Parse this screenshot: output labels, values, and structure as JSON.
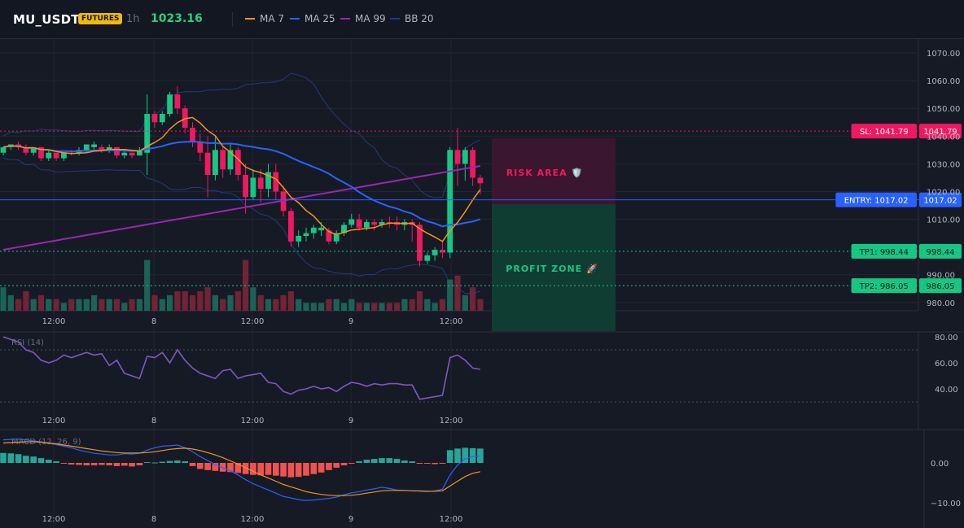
{
  "header": {
    "symbol": "MU_USDT",
    "badge": "FUTURES",
    "timeframe": "1h",
    "price": "1023.16",
    "legend": [
      {
        "label": "MA 7",
        "color": "#f7931a"
      },
      {
        "label": "MA 25",
        "color": "#2962ff"
      },
      {
        "label": "MA 99",
        "color": "#9c27b0"
      },
      {
        "label": "BB 20",
        "color": "#1e3a8a"
      }
    ]
  },
  "price_axis_ticks": [
    "1070.00",
    "1060.00",
    "1050.00",
    "1040.00",
    "1030.00",
    "1020.00",
    "1010.00",
    "990.00",
    "980.00"
  ],
  "time_axis_ticks": [
    "12:00",
    "8",
    "12:00",
    "9",
    "12:00"
  ],
  "rsi": {
    "label": "RSI (14)",
    "ticks": [
      "80.00",
      "60.00",
      "40.00"
    ]
  },
  "macd": {
    "label": "MACD (12, 26, 9)",
    "ticks": [
      "0.00",
      "−10.00"
    ]
  },
  "zones": {
    "risk_label": "RISK AREA 🛡️",
    "profit_label": "PROFIT ZONE 🚀"
  },
  "levels": [
    {
      "key": "sl",
      "label": "SL: 1041.79",
      "value_label": "1041.79",
      "color": "#f0185f"
    },
    {
      "key": "entry",
      "label": "ENTRY: 1017.02",
      "value_label": "1017.02",
      "color": "#2962ff"
    },
    {
      "key": "tp1",
      "label": "TP1: 998.44",
      "value_label": "998.44",
      "color": "#16c784"
    },
    {
      "key": "tp2",
      "label": "TP2: 986.05",
      "value_label": "986.05",
      "color": "#16c784"
    }
  ],
  "colors": {
    "up": "#16c784",
    "down": "#f0185f",
    "bg": "#161a25",
    "grid": "#222632"
  },
  "chart_data": {
    "type": "candlestick",
    "symbol": "MU_USDT",
    "interval": "1h",
    "last_price": 1023.16,
    "price_range": [
      977,
      1075
    ],
    "time_labels": [
      "12:00",
      "8",
      "12:00",
      "9",
      "12:00"
    ],
    "levels": {
      "sl": 1041.79,
      "entry": 1017.02,
      "tp1": 998.44,
      "tp2": 986.05
    },
    "candles": [
      [
        1034,
        1036,
        1033,
        1036,
        6,
        "up"
      ],
      [
        1036,
        1037,
        1035,
        1037,
        4,
        "up"
      ],
      [
        1037,
        1038,
        1035,
        1036,
        3,
        "down"
      ],
      [
        1036,
        1037,
        1033,
        1034,
        5,
        "down"
      ],
      [
        1034,
        1036,
        1033,
        1036,
        3,
        "up"
      ],
      [
        1036,
        1036,
        1031,
        1032,
        4,
        "down"
      ],
      [
        1032,
        1035,
        1031,
        1034,
        3,
        "up"
      ],
      [
        1034,
        1034,
        1031,
        1032,
        3,
        "down"
      ],
      [
        1032,
        1034,
        1031,
        1034,
        2,
        "up"
      ],
      [
        1034,
        1035,
        1033,
        1034,
        3,
        "down"
      ],
      [
        1034,
        1036,
        1033,
        1035,
        3,
        "up"
      ],
      [
        1035,
        1037,
        1034,
        1037,
        3,
        "up"
      ],
      [
        1037,
        1038,
        1035,
        1036,
        4,
        "up"
      ],
      [
        1036,
        1037,
        1034,
        1035,
        3,
        "down"
      ],
      [
        1035,
        1037,
        1034,
        1036,
        3,
        "up"
      ],
      [
        1036,
        1036,
        1032,
        1033,
        3,
        "down"
      ],
      [
        1033,
        1035,
        1032,
        1034,
        2,
        "up"
      ],
      [
        1034,
        1034,
        1032,
        1033,
        3,
        "down"
      ],
      [
        1033,
        1036,
        1033,
        1035,
        3,
        "up"
      ],
      [
        1034,
        1055,
        1026,
        1048,
        13,
        "up"
      ],
      [
        1048,
        1049,
        1043,
        1045,
        4,
        "down"
      ],
      [
        1045,
        1049,
        1044,
        1048,
        3,
        "up"
      ],
      [
        1048,
        1056,
        1047,
        1055,
        4,
        "up"
      ],
      [
        1055,
        1058,
        1048,
        1050,
        5,
        "down"
      ],
      [
        1050,
        1051,
        1041,
        1043,
        5,
        "down"
      ],
      [
        1043,
        1045,
        1036,
        1038,
        4,
        "down"
      ],
      [
        1038,
        1041,
        1031,
        1034,
        5,
        "down"
      ],
      [
        1034,
        1040,
        1018,
        1026,
        6,
        "down"
      ],
      [
        1026,
        1040,
        1024,
        1035,
        4,
        "up"
      ],
      [
        1035,
        1036,
        1025,
        1028,
        3,
        "down"
      ],
      [
        1028,
        1037,
        1026,
        1035,
        4,
        "up"
      ],
      [
        1035,
        1036,
        1024,
        1026,
        5,
        "down"
      ],
      [
        1026,
        1030,
        1012,
        1018,
        13,
        "down"
      ],
      [
        1018,
        1028,
        1017,
        1025,
        6,
        "up"
      ],
      [
        1025,
        1028,
        1016,
        1021,
        4,
        "down"
      ],
      [
        1021,
        1030,
        1018,
        1027,
        3,
        "up"
      ],
      [
        1027,
        1030,
        1017,
        1020,
        3,
        "down"
      ],
      [
        1020,
        1022,
        1011,
        1013,
        4,
        "down"
      ],
      [
        1013,
        1014,
        1000,
        1002,
        5,
        "down"
      ],
      [
        1002,
        1006,
        1000,
        1004,
        3,
        "up"
      ],
      [
        1004,
        1007,
        1002,
        1005,
        2,
        "up"
      ],
      [
        1005,
        1008,
        1003,
        1007,
        2,
        "up"
      ],
      [
        1007,
        1009,
        1004,
        1006,
        2,
        "up"
      ],
      [
        1006,
        1007,
        1001,
        1002,
        3,
        "down"
      ],
      [
        1002,
        1006,
        1001,
        1005,
        3,
        "up"
      ],
      [
        1005,
        1009,
        1004,
        1008,
        2,
        "up"
      ],
      [
        1008,
        1012,
        1007,
        1010,
        3,
        "up"
      ],
      [
        1010,
        1012,
        1006,
        1007,
        2,
        "down"
      ],
      [
        1007,
        1010,
        1006,
        1009,
        2,
        "up"
      ],
      [
        1009,
        1010,
        1006,
        1008,
        2,
        "down"
      ],
      [
        1008,
        1010,
        1007,
        1009,
        2,
        "up"
      ],
      [
        1009,
        1011,
        1007,
        1009,
        2,
        "down"
      ],
      [
        1009,
        1011,
        1006,
        1008,
        2,
        "down"
      ],
      [
        1008,
        1010,
        1006,
        1009,
        3,
        "up"
      ],
      [
        1009,
        1010,
        1002,
        1008,
        3,
        "down"
      ],
      [
        1008,
        1009,
        993,
        995,
        5,
        "down"
      ],
      [
        995,
        998,
        994,
        997,
        3,
        "up"
      ],
      [
        997,
        1000,
        995,
        999,
        2,
        "up"
      ],
      [
        999,
        1002,
        996,
        998,
        3,
        "down"
      ],
      [
        998,
        1036,
        996,
        1035,
        8,
        "up"
      ],
      [
        1035,
        1043,
        1022,
        1030,
        9,
        "down"
      ],
      [
        1030,
        1036,
        1024,
        1035,
        4,
        "up"
      ],
      [
        1035,
        1036,
        1022,
        1025,
        6,
        "down"
      ],
      [
        1025,
        1026,
        1019,
        1023,
        3,
        "down"
      ]
    ]
  }
}
